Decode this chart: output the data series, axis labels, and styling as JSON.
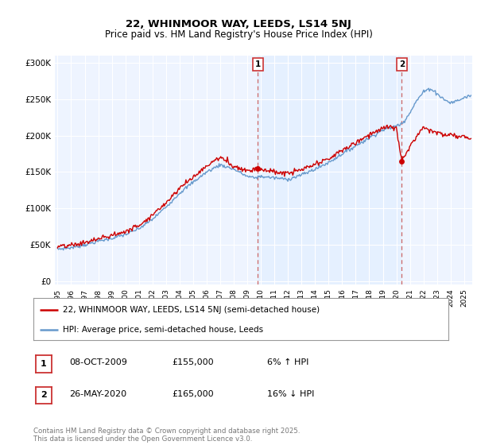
{
  "title": "22, WHINMOOR WAY, LEEDS, LS14 5NJ",
  "subtitle": "Price paid vs. HM Land Registry's House Price Index (HPI)",
  "ylabel_ticks": [
    "£0",
    "£50K",
    "£100K",
    "£150K",
    "£200K",
    "£250K",
    "£300K"
  ],
  "ytick_values": [
    0,
    50000,
    100000,
    150000,
    200000,
    250000,
    300000
  ],
  "ylim": [
    -5000,
    310000
  ],
  "xlim_start": 1994.8,
  "xlim_end": 2025.6,
  "fig_bg": "#ffffff",
  "plot_bg": "#ffffff",
  "between_fill": "#ddeeff",
  "hpi_color": "#6699cc",
  "price_color": "#cc0000",
  "vline_color": "#cc6666",
  "marker1_date": 2009.77,
  "marker1_price": 155000,
  "marker2_date": 2020.4,
  "marker2_price": 165000,
  "legend_price_label": "22, WHINMOOR WAY, LEEDS, LS14 5NJ (semi-detached house)",
  "legend_hpi_label": "HPI: Average price, semi-detached house, Leeds",
  "table_rows": [
    {
      "num": "1",
      "date": "08-OCT-2009",
      "price": "£155,000",
      "rel": "6% ↑ HPI"
    },
    {
      "num": "2",
      "date": "26-MAY-2020",
      "price": "£165,000",
      "rel": "16% ↓ HPI"
    }
  ],
  "footer": "Contains HM Land Registry data © Crown copyright and database right 2025.\nThis data is licensed under the Open Government Licence v3.0.",
  "hpi_anchors_x": [
    1995,
    1996,
    1997,
    1998,
    1999,
    2000,
    2001,
    2002,
    2003,
    2004,
    2005,
    2006,
    2007,
    2008,
    2009,
    2009.5,
    2010,
    2011,
    2012,
    2013,
    2014,
    2015,
    2016,
    2017,
    2018,
    2019,
    2020,
    2020.5,
    2021,
    2021.5,
    2022,
    2022.5,
    2023,
    2023.5,
    2024,
    2024.5,
    2025,
    2025.4
  ],
  "hpi_anchors_y": [
    44000,
    46000,
    50000,
    55000,
    59000,
    64000,
    72000,
    85000,
    102000,
    121000,
    136000,
    150000,
    160000,
    154000,
    144000,
    142000,
    144000,
    142000,
    140000,
    146000,
    154000,
    163000,
    175000,
    186000,
    197000,
    208000,
    213000,
    218000,
    232000,
    248000,
    260000,
    265000,
    258000,
    250000,
    245000,
    248000,
    252000,
    255000
  ],
  "price_anchors_x": [
    1995,
    1996,
    1997,
    1998,
    1999,
    2000,
    2001,
    2002,
    2003,
    2004,
    2005,
    2006,
    2006.5,
    2007,
    2007.5,
    2008,
    2009,
    2009.77,
    2010,
    2011,
    2012,
    2013,
    2014,
    2015,
    2016,
    2017,
    2018,
    2019,
    2019.5,
    2020,
    2020.4,
    2020.6,
    2021,
    2021.5,
    2022,
    2022.5,
    2023,
    2023.5,
    2024,
    2024.5,
    2025,
    2025.4
  ],
  "price_anchors_y": [
    47000,
    49000,
    53000,
    58000,
    63000,
    68000,
    77000,
    91000,
    108000,
    128000,
    143000,
    158000,
    165000,
    170000,
    165000,
    158000,
    152000,
    155000,
    154000,
    150000,
    148000,
    153000,
    160000,
    168000,
    180000,
    190000,
    202000,
    210000,
    212000,
    210000,
    165000,
    170000,
    185000,
    200000,
    212000,
    208000,
    205000,
    200000,
    202000,
    198000,
    200000,
    197000
  ]
}
